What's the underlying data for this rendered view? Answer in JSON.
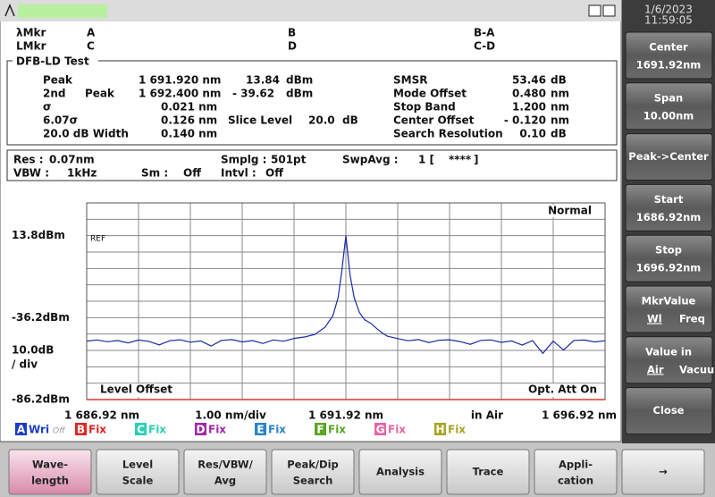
{
  "clock": {
    "date": "1/6/2023",
    "time": "11:59:05"
  },
  "markers": [
    [
      "λMkr",
      "A",
      "B",
      "B-A"
    ],
    [
      "LMkr",
      "C",
      "D",
      "C-D"
    ]
  ],
  "analysis": {
    "title": "DFB-LD Test",
    "left": [
      [
        "Peak",
        "1 691.920 nm",
        "13.84",
        "dBm"
      ],
      [
        "2nd",
        "Peak",
        "1 692.400 nm",
        "- 39.62",
        "dBm"
      ],
      [
        "σ",
        "0.021 nm"
      ],
      [
        "6.07σ",
        "0.126 nm",
        "Slice Level",
        "20.0",
        "dB"
      ],
      [
        "20.0 dB Width",
        "0.140 nm"
      ]
    ],
    "right": [
      [
        "SMSR",
        "53.46",
        "dB"
      ],
      [
        "Mode Offset",
        "0.480",
        "nm"
      ],
      [
        "Stop Band",
        "1.200",
        "nm"
      ],
      [
        "Center Offset",
        "- 0.120",
        "nm"
      ],
      [
        "Search Resolution",
        "0.10",
        "dB"
      ]
    ]
  },
  "settings": [
    [
      "Res :",
      "0.07nm",
      "Smplg :",
      "501pt",
      "SwpAvg :",
      "1 [",
      "****",
      "]"
    ],
    [
      "VBW :",
      "1kHz",
      "Sm :",
      "Off",
      "Intvl :",
      "Off"
    ]
  ],
  "softkeys": [
    [
      "Center",
      "1691.92nm"
    ],
    [
      "Span",
      "10.00nm"
    ],
    [
      "Peak->Center"
    ],
    [
      "Start",
      "1686.92nm"
    ],
    [
      "Stop",
      "1696.92nm"
    ],
    [
      "MkrValue",
      "Wl",
      "Freq"
    ],
    [
      "Value in",
      "Air",
      "Vacuum"
    ],
    [
      "Close"
    ]
  ],
  "bottom_keys": [
    [
      "Wave-",
      "length"
    ],
    [
      "Level",
      "Scale"
    ],
    [
      "Res/VBW/",
      "Avg"
    ],
    [
      "Peak/Dip",
      "Search"
    ],
    [
      "Analysis"
    ],
    [
      "Trace"
    ],
    [
      "Appli-",
      "cation"
    ],
    [
      "→"
    ]
  ],
  "traces": [
    {
      "letter": "A",
      "status": "Wri",
      "extra": "Off",
      "color": "#1a3cc8"
    },
    {
      "letter": "B",
      "status": "Fix",
      "color": "#e02424"
    },
    {
      "letter": "C",
      "status": "Fix",
      "color": "#2ad0b4"
    },
    {
      "letter": "D",
      "status": "Fix",
      "color": "#a028a8"
    },
    {
      "letter": "E",
      "status": "Fix",
      "color": "#2a84c8"
    },
    {
      "letter": "F",
      "status": "Fix",
      "color": "#5ca424"
    },
    {
      "letter": "G",
      "status": "Fix",
      "color": "#e864a4"
    },
    {
      "letter": "H",
      "status": "Fix",
      "color": "#a8a424"
    }
  ],
  "chart_data": {
    "type": "line",
    "x": [
      1686.92,
      1687.12,
      1687.32,
      1687.52,
      1687.72,
      1687.92,
      1688.12,
      1688.32,
      1688.52,
      1688.72,
      1688.92,
      1689.12,
      1689.32,
      1689.52,
      1689.72,
      1689.92,
      1690.12,
      1690.32,
      1690.52,
      1690.72,
      1690.92,
      1691.12,
      1691.32,
      1691.52,
      1691.67,
      1691.77,
      1691.84,
      1691.88,
      1691.92,
      1691.96,
      1692.0,
      1692.08,
      1692.18,
      1692.28,
      1692.4,
      1692.52,
      1692.62,
      1692.72,
      1692.92,
      1693.12,
      1693.32,
      1693.52,
      1693.72,
      1693.92,
      1694.12,
      1694.32,
      1694.52,
      1694.72,
      1694.92,
      1695.12,
      1695.32,
      1695.52,
      1695.72,
      1695.92,
      1696.12,
      1696.32,
      1696.52,
      1696.72,
      1696.92
    ],
    "series": [
      {
        "color": "#1a2aa8",
        "values": [
          -50.5,
          -49.8,
          -50.9,
          -50.2,
          -51.6,
          -49.9,
          -50.7,
          -52.8,
          -50.3,
          -49.7,
          -51.2,
          -50.4,
          -53.5,
          -50.1,
          -49.6,
          -51.0,
          -50.2,
          -52.0,
          -49.8,
          -50.6,
          -48.9,
          -48.0,
          -46.5,
          -42.0,
          -35.0,
          -24.0,
          -8.0,
          3.0,
          13.84,
          2.0,
          -10.0,
          -24.0,
          -33.0,
          -37.5,
          -39.62,
          -43.0,
          -45.5,
          -47.5,
          -49.0,
          -50.3,
          -49.6,
          -51.4,
          -50.0,
          -49.7,
          -50.8,
          -52.5,
          -50.1,
          -49.8,
          -51.3,
          -50.4,
          -53.0,
          -50.2,
          -58.0,
          -50.5,
          -56.0,
          -50.1,
          -49.9,
          -51.0,
          -50.3
        ]
      }
    ],
    "xlim": [
      1686.92,
      1696.92
    ],
    "ylim": [
      -86.2,
      33.8
    ],
    "xticks": [
      {
        "value": 1686.92,
        "label": "1 686.92 nm"
      },
      {
        "value": 1691.92,
        "label": "1 691.92 nm"
      },
      {
        "value": 1696.92,
        "label": "1 696.92 nm"
      }
    ],
    "yticks": [
      {
        "value": 13.8,
        "label": "13.8dBm"
      },
      {
        "value": -36.2,
        "label": "-36.2dBm"
      },
      {
        "value": -86.2,
        "label": "-86.2dBm"
      }
    ],
    "xdiv": {
      "value": 1,
      "label": "1.00 nm/div"
    },
    "ydiv": {
      "value": 10,
      "label": "10.0dB"
    },
    "ydiv_suffix": "/ div",
    "ref": "REF",
    "mode": "Normal",
    "level_offset": "Level Offset",
    "attenuator": "Opt. Att On",
    "medium": "in Air",
    "grid": true
  }
}
